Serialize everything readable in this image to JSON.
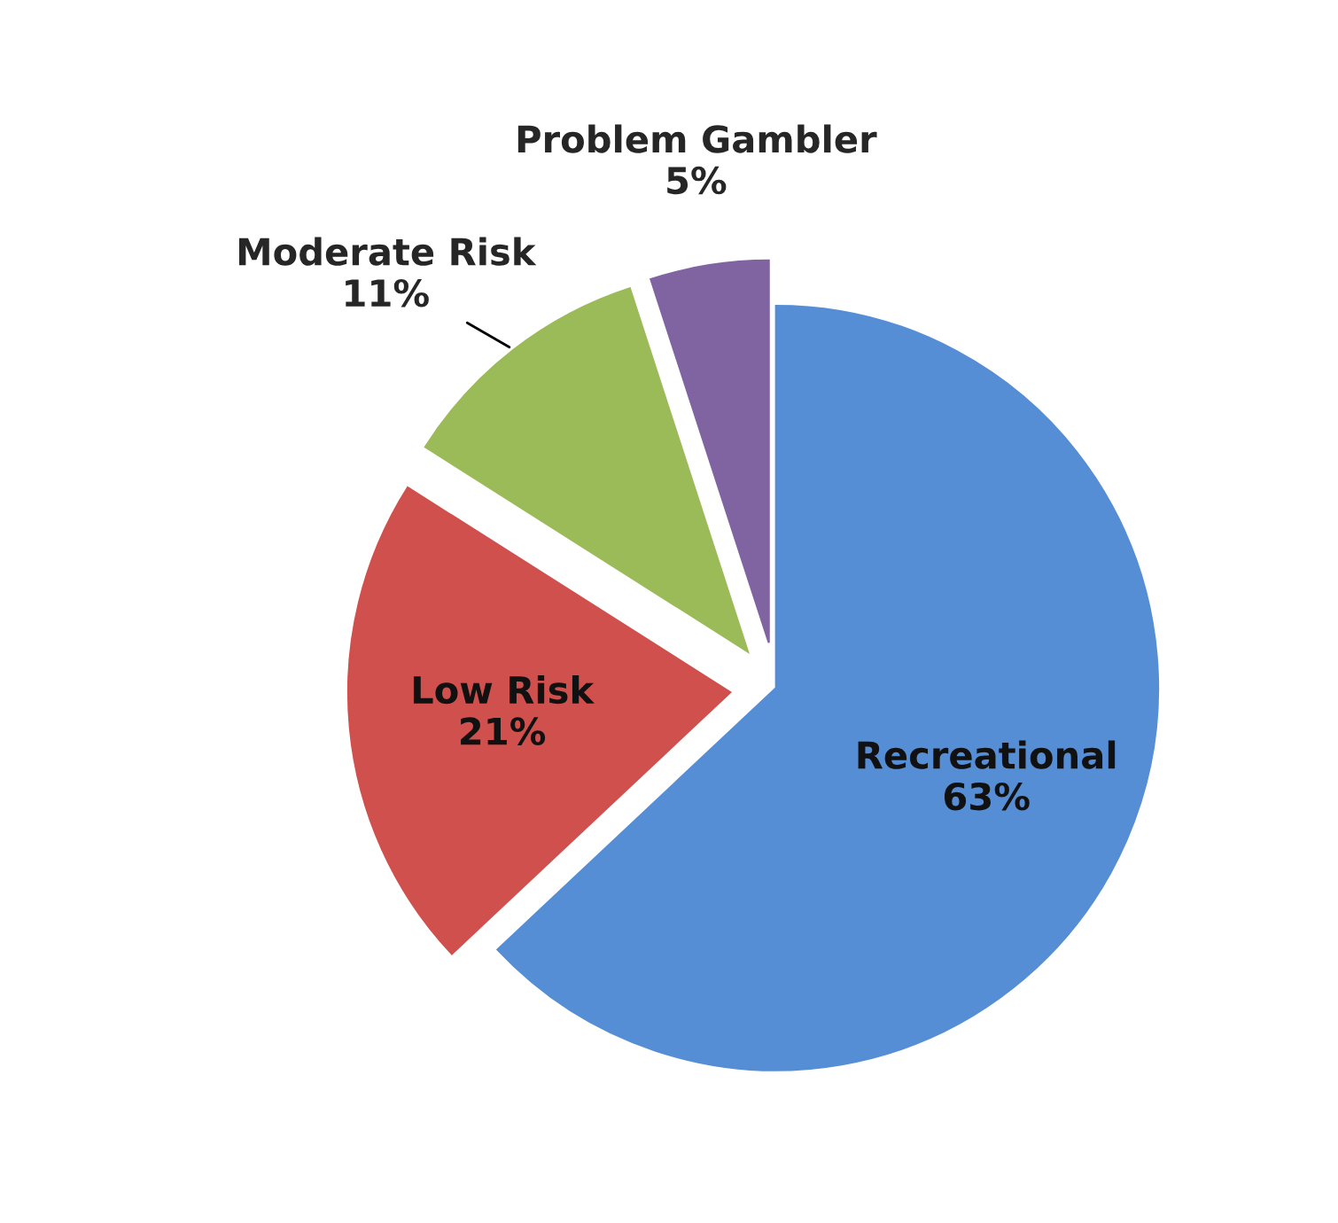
{
  "chart_data": {
    "type": "pie",
    "categories": [
      "Recreational",
      "Low Risk",
      "Moderate Risk",
      "Problem Gambler"
    ],
    "values": [
      63,
      21,
      11,
      5
    ],
    "value_labels": [
      "63%",
      "21%",
      "11%",
      "5%"
    ],
    "colors": [
      "#558ed5",
      "#d0504d",
      "#9bbb59",
      "#8064a2"
    ],
    "legend": false
  }
}
